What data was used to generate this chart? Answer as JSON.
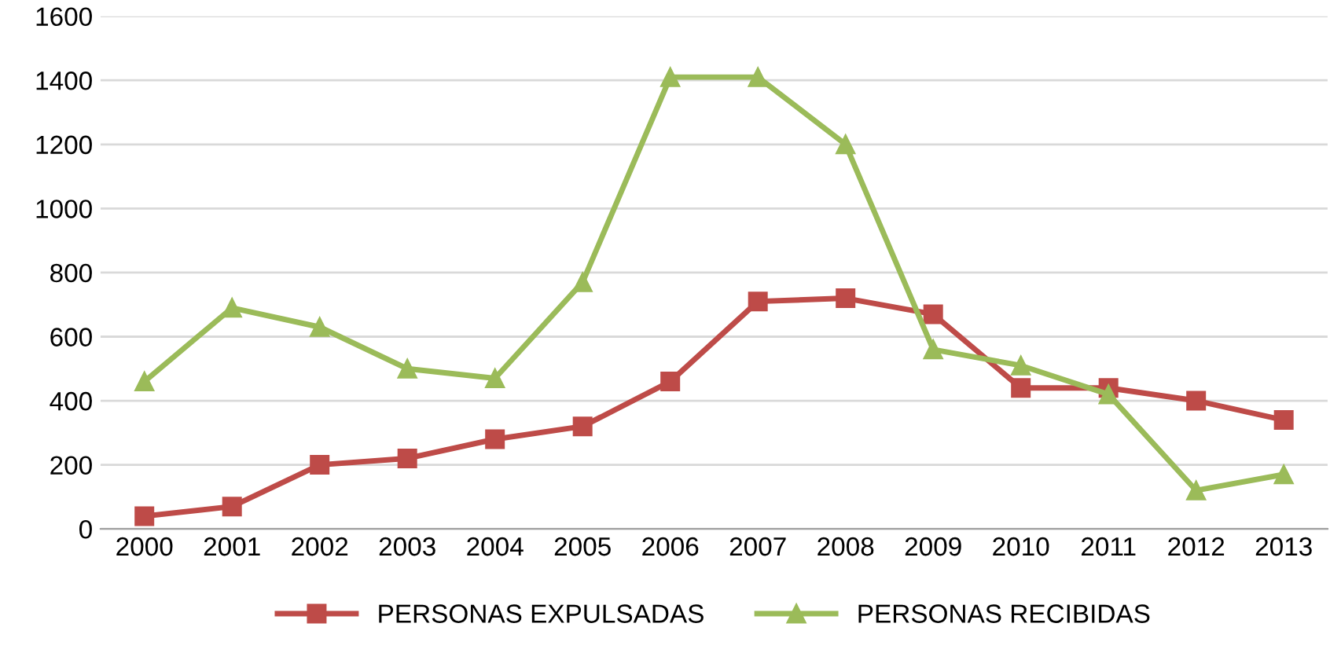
{
  "chart_data": {
    "type": "line",
    "categories": [
      "2000",
      "2001",
      "2002",
      "2003",
      "2004",
      "2005",
      "2006",
      "2007",
      "2008",
      "2009",
      "2010",
      "2011",
      "2012",
      "2013"
    ],
    "series": [
      {
        "name": "PERSONAS EXPULSADAS",
        "color": "#be4b48",
        "marker": "square",
        "values": [
          40,
          70,
          200,
          220,
          280,
          320,
          460,
          710,
          720,
          670,
          440,
          440,
          400,
          340
        ]
      },
      {
        "name": "PERSONAS RECIBIDAS",
        "color": "#9bbb59",
        "marker": "triangle",
        "values": [
          460,
          690,
          630,
          500,
          470,
          770,
          1410,
          1410,
          1200,
          560,
          510,
          420,
          120,
          170
        ]
      }
    ],
    "ylim": [
      0,
      1600
    ],
    "yticks": [
      0,
      200,
      400,
      600,
      800,
      1000,
      1200,
      1400,
      1600
    ],
    "grid": "y",
    "legend": "bottom"
  }
}
